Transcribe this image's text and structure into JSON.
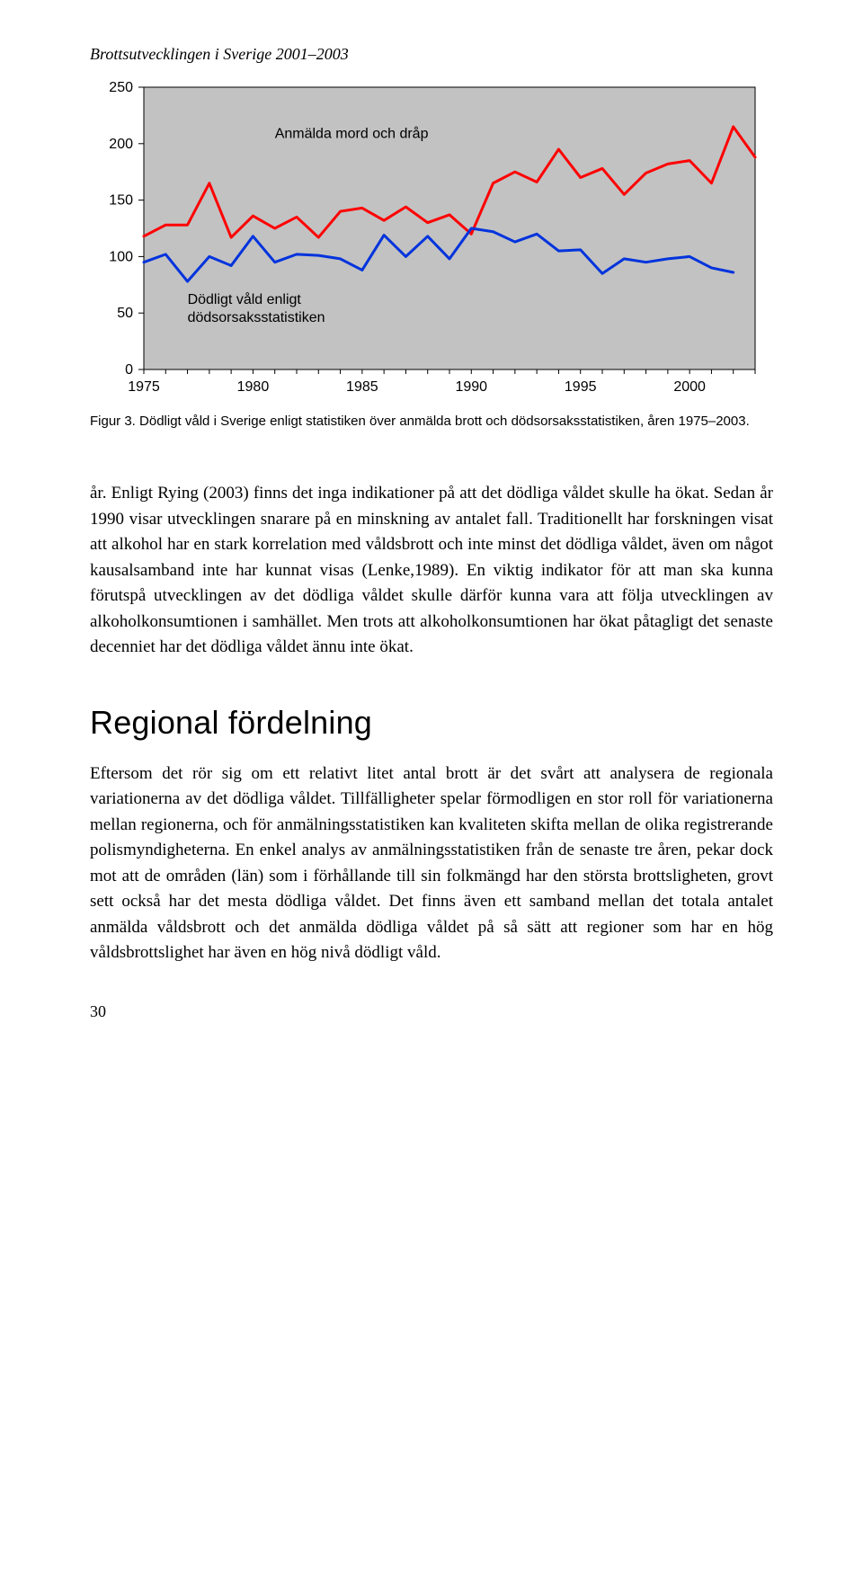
{
  "running_head": "Brottsutvecklingen i Sverige 2001–2003",
  "chart": {
    "type": "line",
    "background_color": "#c2c2c2",
    "panel_border_color": "#000000",
    "axis_tick_color": "#000000",
    "text_color": "#000000",
    "line_width": 3,
    "font_family": "Arial, Helvetica, sans-serif",
    "y": {
      "min": 0,
      "max": 250,
      "ticks": [
        0,
        50,
        100,
        150,
        200,
        250
      ],
      "tick_fontsize": 16
    },
    "x": {
      "min": 1975,
      "max": 2003,
      "ticks": [
        1975,
        1980,
        1985,
        1990,
        1995,
        2000
      ],
      "tick_fontsize": 16
    },
    "series": [
      {
        "name": "Anmälda mord och dråp",
        "color": "#ff0000",
        "label_xy": [
          1981,
          205
        ],
        "data": [
          [
            1975,
            118
          ],
          [
            1976,
            128
          ],
          [
            1977,
            128
          ],
          [
            1978,
            165
          ],
          [
            1979,
            117
          ],
          [
            1980,
            136
          ],
          [
            1981,
            125
          ],
          [
            1982,
            135
          ],
          [
            1983,
            117
          ],
          [
            1984,
            140
          ],
          [
            1985,
            143
          ],
          [
            1986,
            132
          ],
          [
            1987,
            144
          ],
          [
            1988,
            130
          ],
          [
            1989,
            137
          ],
          [
            1990,
            120
          ],
          [
            1991,
            165
          ],
          [
            1992,
            175
          ],
          [
            1993,
            166
          ],
          [
            1994,
            195
          ],
          [
            1995,
            170
          ],
          [
            1996,
            178
          ],
          [
            1997,
            155
          ],
          [
            1998,
            174
          ],
          [
            1999,
            182
          ],
          [
            2000,
            185
          ],
          [
            2001,
            165
          ],
          [
            2002,
            215
          ],
          [
            2003,
            188
          ]
        ]
      },
      {
        "name": "Dödligt våld enligt dödsorsaksstatistiken",
        "color": "#0033dd",
        "label_xy": [
          1977,
          58
        ],
        "data": [
          [
            1975,
            95
          ],
          [
            1976,
            102
          ],
          [
            1977,
            78
          ],
          [
            1978,
            100
          ],
          [
            1979,
            92
          ],
          [
            1980,
            118
          ],
          [
            1981,
            95
          ],
          [
            1982,
            102
          ],
          [
            1983,
            101
          ],
          [
            1984,
            98
          ],
          [
            1985,
            88
          ],
          [
            1986,
            119
          ],
          [
            1987,
            100
          ],
          [
            1988,
            118
          ],
          [
            1989,
            98
          ],
          [
            1990,
            125
          ],
          [
            1991,
            122
          ],
          [
            1992,
            113
          ],
          [
            1993,
            120
          ],
          [
            1994,
            105
          ],
          [
            1995,
            106
          ],
          [
            1996,
            85
          ],
          [
            1997,
            98
          ],
          [
            1998,
            95
          ],
          [
            1999,
            98
          ],
          [
            2000,
            100
          ],
          [
            2001,
            90
          ],
          [
            2002,
            86
          ]
        ]
      }
    ]
  },
  "figure_caption": "Figur 3. Dödligt våld i Sverige enligt statistiken över anmälda brott och dödsorsaksstatistiken, åren 1975–2003.",
  "para1": "år. Enligt Rying (2003) finns det inga indikationer på att det dödliga våldet skulle ha ökat. Sedan år 1990 visar utvecklingen snarare på en minskning av antalet fall. Traditionellt har forskningen visat att alkohol har en stark korrelation med våldsbrott och inte minst det dödliga våldet, även om något kausalsamband inte har kunnat visas (Lenke,1989). En viktig indikator för att man ska kunna förutspå utvecklingen av det dödliga våldet skulle därför kunna vara att följa utvecklingen av alkoholkonsumtionen i samhället. Men trots att alkoholkonsumtionen har ökat påtagligt det senaste decenniet har det dödliga våldet ännu inte ökat.",
  "section_head": "Regional fördelning",
  "para2": "Eftersom det rör sig om ett relativt litet antal brott är det svårt att analysera de regionala variationerna av det dödliga våldet. Tillfälligheter spelar förmodligen en stor roll för variationerna mellan regionerna, och för anmälningsstatistiken kan kvaliteten skifta mellan de olika registrerande polismyndigheterna. En enkel analys av anmälningsstatistiken från de senaste tre åren, pekar dock mot att de områden (län) som i förhållande till sin folkmängd har den största brottsligheten, grovt sett också har det mesta dödliga våldet. Det finns även ett samband mellan det totala antalet anmälda våldsbrott och det anmälda dödliga våldet på så sätt att regioner som har en hög våldsbrottslighet har även en hög nivå dödligt våld.",
  "page_number": "30"
}
